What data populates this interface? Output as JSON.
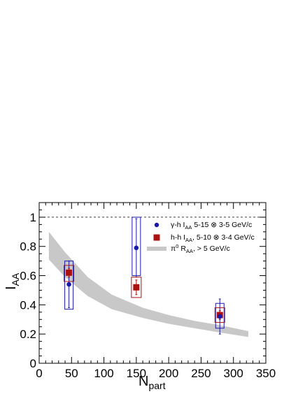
{
  "chart_data": {
    "type": "scatter",
    "title": "",
    "xlabel": "N",
    "xlabel_sub": "part",
    "ylabel": "I",
    "ylabel_sub": "AA",
    "xlim": [
      0,
      350
    ],
    "ylim": [
      0,
      1.1
    ],
    "xticks": [
      0,
      50,
      100,
      150,
      200,
      250,
      300,
      350
    ],
    "xtick_labels": [
      "0",
      "50",
      "100",
      "150",
      "200",
      "250",
      "300",
      "350"
    ],
    "yticks": [
      0,
      0.2,
      0.4,
      0.6,
      0.8,
      1
    ],
    "ytick_labels": [
      "0",
      "0.2",
      "0.4",
      "0.6",
      "0.8",
      "1"
    ],
    "reference_line": {
      "y": 1,
      "style": "dashed"
    },
    "grid": false,
    "legend_position": "top-right",
    "series": [
      {
        "key": "gamma_h",
        "legend_text": "γ-h I",
        "legend_sub": "AA",
        "legend_tail": " 5-15 ⊗ 3-5 GeV/c",
        "marker": "circle",
        "color": "#1a1aaa",
        "points": [
          {
            "x": 46,
            "y": 0.54,
            "stat_err": 0.16,
            "sys_low": 0.37,
            "sys_high": 0.7
          },
          {
            "x": 150,
            "y": 0.79,
            "stat_err": 0.2,
            "sys_low": 0.6,
            "sys_high": 1.0
          },
          {
            "x": 279,
            "y": 0.32,
            "stat_err": 0.12,
            "sys_low": 0.24,
            "sys_high": 0.41
          }
        ]
      },
      {
        "key": "h_h",
        "legend_text": "h-h I",
        "legend_sub": "AA",
        "legend_tail": ", 5-10 ⊗ 3-4 GeV/c",
        "marker": "square",
        "color": "#aa1111",
        "points": [
          {
            "x": 46,
            "y": 0.62,
            "stat_err": 0.03,
            "sys_low": 0.56,
            "sys_high": 0.67
          },
          {
            "x": 150,
            "y": 0.52,
            "stat_err": 0.05,
            "sys_low": 0.45,
            "sys_high": 0.59
          },
          {
            "x": 279,
            "y": 0.33,
            "stat_err": 0.03,
            "sys_low": 0.28,
            "sys_high": 0.38
          }
        ]
      },
      {
        "key": "pi0_raa",
        "legend_text": "π",
        "legend_sup": "0",
        "legend_mid": " R",
        "legend_sub": "AA",
        "legend_tail": ", > 5 GeV/c",
        "marker": "band",
        "color": "#c8c8c8",
        "band": {
          "x": [
            15,
            40,
            75,
            112,
            160,
            200,
            240,
            280,
            323
          ],
          "upper": [
            0.9,
            0.76,
            0.59,
            0.47,
            0.38,
            0.33,
            0.29,
            0.26,
            0.22
          ],
          "lower": [
            0.71,
            0.59,
            0.46,
            0.37,
            0.31,
            0.27,
            0.24,
            0.21,
            0.18
          ]
        }
      }
    ]
  }
}
